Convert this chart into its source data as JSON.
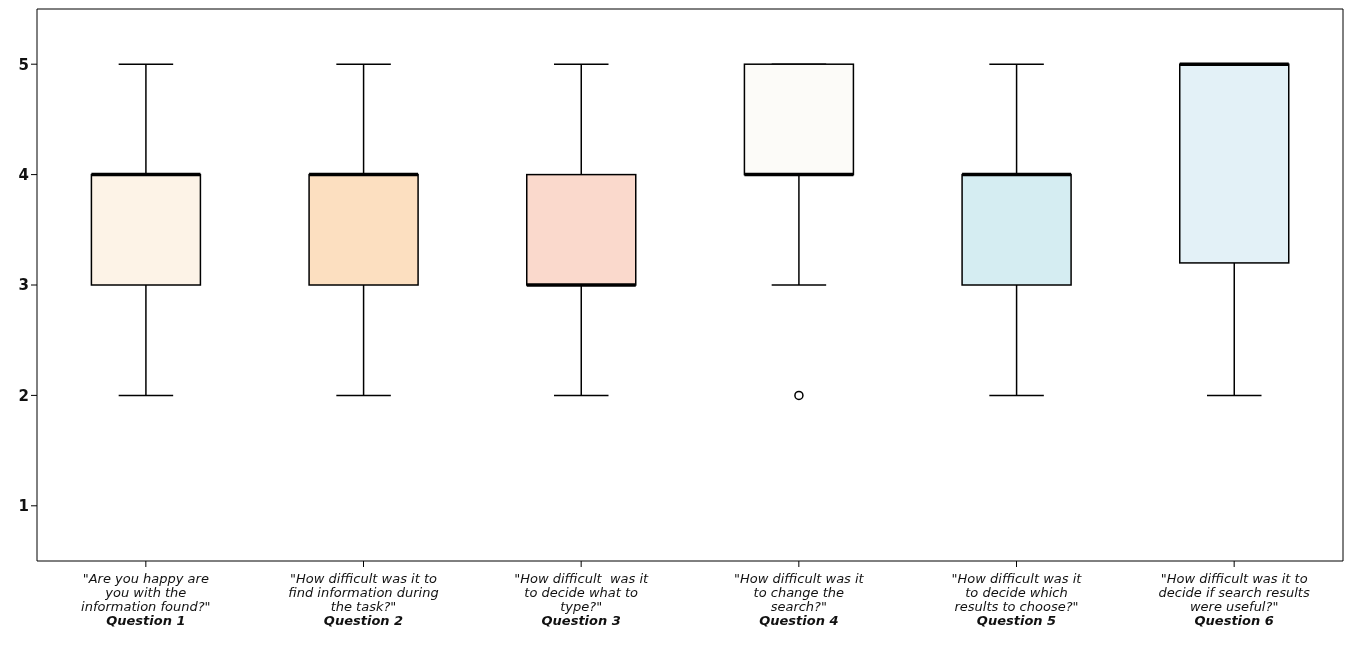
{
  "chart_data": {
    "type": "box",
    "categories": [
      "\"Are you happy are\nyou with the\ninformation found?\"\nQuestion 1",
      "\"How difficult was it to\nfind information during\nthe task?\"\nQuestion 2",
      "\"How difficult  was it\nto decide what to\ntype?\"\nQuestion 3",
      "\"How difficult was it\nto change the\nsearch?\"\nQuestion 4",
      "\"How difficult was it\nto decide which\nresults to choose?\"\nQuestion 5",
      "\"How difficult was it to\ndecide if search results\nwere useful?\"\nQuestion 6"
    ],
    "boxes": [
      {
        "low": 2,
        "q1": 3,
        "median": 4,
        "q3": 4,
        "high": 5
      },
      {
        "low": 2,
        "q1": 3,
        "median": 4,
        "q3": 4,
        "high": 5
      },
      {
        "low": 2,
        "q1": 3,
        "median": 3,
        "q3": 4,
        "high": 5
      },
      {
        "low": 3,
        "q1": 4,
        "median": 4,
        "q3": 5,
        "high": 5,
        "outliers": [
          2
        ]
      },
      {
        "low": 2,
        "q1": 3,
        "median": 4,
        "q3": 4,
        "high": 5
      },
      {
        "low": 2,
        "q1": 3.2,
        "median": 5,
        "q3": 5,
        "high": 5
      }
    ],
    "colors": [
      "#fdf3e7",
      "#fcdfc0",
      "#fad9cc",
      "#fcfbf8",
      "#d5edf2",
      "#e3f1f7"
    ],
    "ylim": [
      0.5,
      5.5
    ],
    "yticks": [
      1,
      2,
      3,
      4,
      5
    ],
    "grid": false
  }
}
